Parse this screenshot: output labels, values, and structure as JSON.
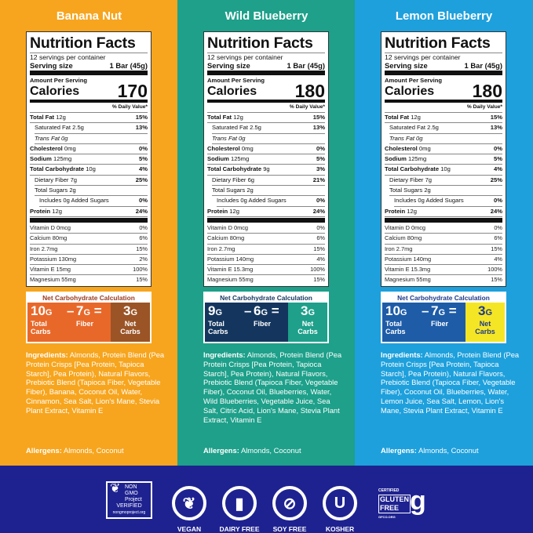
{
  "colors": {
    "banana": "#f7a51e",
    "wild": "#1ea08a",
    "lemon": "#1ea0dc",
    "bottom": "#1e2290"
  },
  "common": {
    "nf_title": "Nutrition Facts",
    "servings": "12 servings per container",
    "serving_size_label": "Serving size",
    "serving_size": "1 Bar (45g)",
    "amount_per_serving": "Amount Per Serving",
    "calories_label": "Calories",
    "daily_value": "% Daily Value*",
    "net_title": "Net Carbohydrate Calculation",
    "total_carbs": "Total Carbs",
    "fiber": "Fiber",
    "net_carbs": "Net Carbs",
    "ingredients_label": "Ingredients:",
    "allergens_label": "Allergens:"
  },
  "panels": [
    {
      "title": "Banana Nut",
      "calories": "170",
      "bg": "#f7a51e",
      "net_left": "#e8682a",
      "net_right": "#9a5426",
      "net_right_text": "#fff",
      "net_head": "#9a3a1e",
      "rows": [
        [
          "Total Fat",
          "12g",
          "15%",
          0,
          1
        ],
        [
          "Saturated Fat 2.5g",
          "",
          "13%",
          1,
          0
        ],
        [
          "Trans Fat 0g",
          "",
          "",
          1,
          0
        ],
        [
          "Cholesterol",
          "0mg",
          "0%",
          0,
          1
        ],
        [
          "Sodium",
          "125mg",
          "5%",
          0,
          1
        ],
        [
          "Total Carbohydrate",
          "10g",
          "4%",
          0,
          1
        ],
        [
          "Dietary Fiber 7g",
          "",
          "25%",
          1,
          0
        ],
        [
          "Total Sugars 2g",
          "",
          "",
          1,
          0
        ],
        [
          "Includes 0g Added Sugars",
          "",
          "0%",
          2,
          0
        ],
        [
          "Protein",
          "12g",
          "24%",
          0,
          1
        ]
      ],
      "vitamins": [
        [
          "Vitamin D 0mcg",
          "0%"
        ],
        [
          "Calcium 80mg",
          "6%"
        ],
        [
          "Iron 2.7mg",
          "15%"
        ],
        [
          "Potassium 130mg",
          "2%"
        ],
        [
          "Vitamin E 15mg",
          "100%"
        ],
        [
          "Magnesium 55mg",
          "15%"
        ]
      ],
      "net": {
        "total": "10",
        "fiber": "7",
        "net": "3"
      },
      "ingredients": "Almonds, Protein Blend (Pea Protein Crisps [Pea Protein, Tapioca Starch], Pea Protein), Natural Flavors, Prebiotic Blend (Tapioca Fiber, Vegetable Fiber), Banana, Coconut Oil, Water, Cinnamon, Sea Salt, Lion's Mane, Stevia Plant Extract, Vitamin E",
      "allergens": "Almonds, Coconut"
    },
    {
      "title": "Wild Blueberry",
      "calories": "180",
      "bg": "#1ea08a",
      "net_left": "#14365e",
      "net_right": "#1ea08a",
      "net_right_text": "#fff",
      "net_head": "#14365e",
      "rows": [
        [
          "Total Fat",
          "12g",
          "15%",
          0,
          1
        ],
        [
          "Saturated Fat 2.5g",
          "",
          "13%",
          1,
          0
        ],
        [
          "Trans Fat 0g",
          "",
          "",
          1,
          0
        ],
        [
          "Cholesterol",
          "0mg",
          "0%",
          0,
          1
        ],
        [
          "Sodium",
          "125mg",
          "5%",
          0,
          1
        ],
        [
          "Total Carbohydrate",
          "9g",
          "3%",
          0,
          1
        ],
        [
          "Dietary Fiber 6g",
          "",
          "21%",
          1,
          0
        ],
        [
          "Total Sugars 2g",
          "",
          "",
          1,
          0
        ],
        [
          "Includes 0g Added Sugars",
          "",
          "0%",
          2,
          0
        ],
        [
          "Protein",
          "12g",
          "24%",
          0,
          1
        ]
      ],
      "vitamins": [
        [
          "Vitamin D 0mcg",
          "0%"
        ],
        [
          "Calcium 80mg",
          "6%"
        ],
        [
          "Iron 2.7mg",
          "15%"
        ],
        [
          "Potassium 140mg",
          "4%"
        ],
        [
          "Vitamin E 15.3mg",
          "100%"
        ],
        [
          "Magnesium 55mg",
          "15%"
        ]
      ],
      "net": {
        "total": "9",
        "fiber": "6",
        "net": "3"
      },
      "ingredients": "Almonds, Protein Blend (Pea Protein Crisps [Pea Protein, Tapioca Starch], Pea Protein), Natural Flavors, Prebiotic Blend (Tapioca Fiber, Vegetable Fiber), Coconut Oil, Blueberries, Water, Wild Blueberries, Vegetable Juice, Sea Salt, Citric Acid, Lion's Mane, Stevia Plant Extract, Vitamin E",
      "allergens": "Almonds, Coconut"
    },
    {
      "title": "Lemon Blueberry",
      "calories": "180",
      "bg": "#1ea0dc",
      "net_left": "#1e5ca8",
      "net_right": "#f5e625",
      "net_right_text": "#1e3a8a",
      "net_head": "#1e3a8a",
      "rows": [
        [
          "Total Fat",
          "12g",
          "15%",
          0,
          1
        ],
        [
          "Saturated Fat 2.5g",
          "",
          "13%",
          1,
          0
        ],
        [
          "Trans Fat 0g",
          "",
          "",
          1,
          0
        ],
        [
          "Cholesterol",
          "0mg",
          "0%",
          0,
          1
        ],
        [
          "Sodium",
          "125mg",
          "5%",
          0,
          1
        ],
        [
          "Total Carbohydrate",
          "10g",
          "4%",
          0,
          1
        ],
        [
          "Dietary Fiber 7g",
          "",
          "25%",
          1,
          0
        ],
        [
          "Total Sugars 2g",
          "",
          "",
          1,
          0
        ],
        [
          "Includes 0g Added Sugars",
          "",
          "0%",
          2,
          0
        ],
        [
          "Protein",
          "12g",
          "24%",
          0,
          1
        ]
      ],
      "vitamins": [
        [
          "Vitamin D 0mcg",
          "0%"
        ],
        [
          "Calcium 80mg",
          "6%"
        ],
        [
          "Iron 2.7mg",
          "15%"
        ],
        [
          "Potassium 140mg",
          "4%"
        ],
        [
          "Vitamin E 15.3mg",
          "100%"
        ],
        [
          "Magnesium 55mg",
          "15%"
        ]
      ],
      "net": {
        "total": "10",
        "fiber": "7",
        "net": "3"
      },
      "ingredients": "Almonds, Protein Blend (Pea Protein Crisps [Pea Protein, Tapioca Starch], Pea Protein), Natural Flavors, Prebiotic Blend (Tapioca Fiber, Vegetable Fiber), Coconut Oil, Blueberries, Water, Lemon Juice, Sea Salt, Lemon, Lion's Mane, Stevia Plant Extract, Vitamin E",
      "allergens": "Almonds, Coconut"
    }
  ],
  "badges": {
    "nongmo": [
      "NON",
      "GMO",
      "Project",
      "VERIFIED",
      "nongmoproject.org"
    ],
    "vegan": "VEGAN",
    "dairy_free": "DAIRY FREE",
    "soy_free": "SOY FREE",
    "kosher": "KOSHER",
    "kosher_symbol": "U",
    "gluten_free": [
      "CERTIFIED",
      "GLUTEN",
      "FREE",
      "GFCO.ORG"
    ]
  }
}
